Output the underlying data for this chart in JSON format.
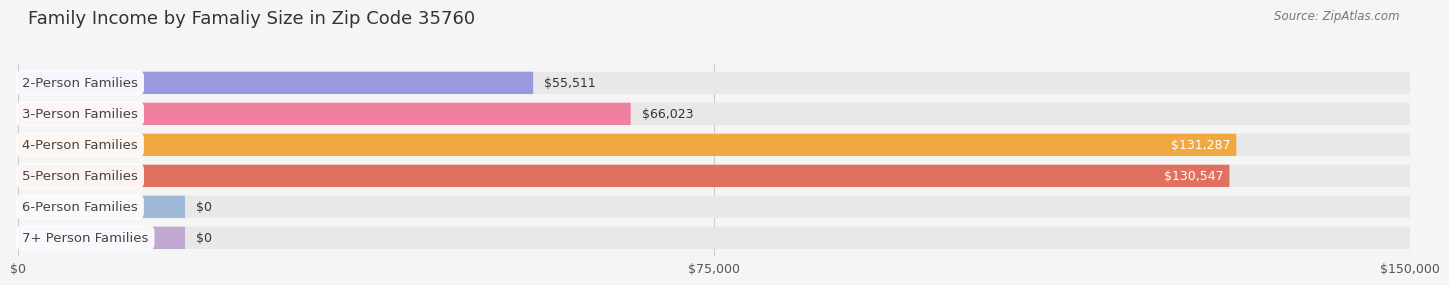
{
  "title": "Family Income by Famaliy Size in Zip Code 35760",
  "source": "Source: ZipAtlas.com",
  "categories": [
    "2-Person Families",
    "3-Person Families",
    "4-Person Families",
    "5-Person Families",
    "6-Person Families",
    "7+ Person Families"
  ],
  "values": [
    55511,
    66023,
    131287,
    130547,
    0,
    0
  ],
  "bar_colors": [
    "#9999dd",
    "#f080a0",
    "#f0a840",
    "#e07060",
    "#a0b8d8",
    "#c0a8d0"
  ],
  "label_colors": [
    "#333333",
    "#333333",
    "#ffffff",
    "#ffffff",
    "#333333",
    "#333333"
  ],
  "xlim": [
    0,
    150000
  ],
  "xtick_labels": [
    "$0",
    "$75,000",
    "$150,000"
  ],
  "bar_height": 0.72,
  "background_color": "#f5f5f5",
  "bar_background_color": "#e8e8e8",
  "value_labels": [
    "$55,511",
    "$66,023",
    "$131,287",
    "$130,547",
    "$0",
    "$0"
  ],
  "title_fontsize": 13,
  "label_fontsize": 9.5,
  "value_fontsize": 9,
  "source_fontsize": 8.5,
  "zero_stub_value": 18000
}
